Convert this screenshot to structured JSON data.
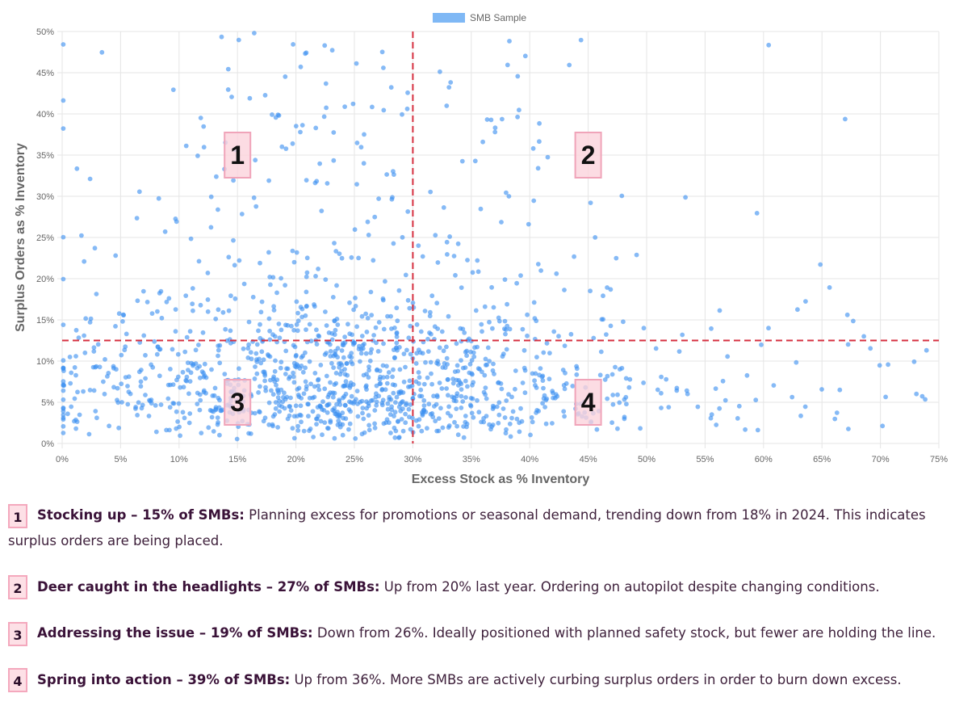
{
  "legend_label": "SMB Sample",
  "colors": {
    "point": "#3b8ff0",
    "legend": "#7fb8f5",
    "threshold": "#d63040",
    "box_fill": "#fbd3dc",
    "box_stroke": "#f0a4b9"
  },
  "chart_data": {
    "type": "scatter",
    "xlabel": "Excess Stock as % Inventory",
    "ylabel": "Surplus Orders as % Inventory",
    "xlim": [
      0,
      75
    ],
    "ylim": [
      0,
      50
    ],
    "x_ticks": [
      "0%",
      "5%",
      "10%",
      "15%",
      "20%",
      "25%",
      "30%",
      "35%",
      "40%",
      "45%",
      "50%",
      "55%",
      "60%",
      "65%",
      "70%",
      "75%"
    ],
    "y_ticks": [
      "0%",
      "5%",
      "10%",
      "15%",
      "20%",
      "25%",
      "30%",
      "35%",
      "40%",
      "45%",
      "50%"
    ],
    "grid": true,
    "legend": "top-center",
    "series": [
      {
        "name": "SMB Sample",
        "sample_size": 1400
      }
    ],
    "thresholds": {
      "x": 30,
      "y": 12.5
    },
    "quadrant_labels": [
      {
        "label": "1",
        "x": 15,
        "y": 35
      },
      {
        "label": "2",
        "x": 45,
        "y": 35
      },
      {
        "label": "3",
        "x": 15,
        "y": 5
      },
      {
        "label": "4",
        "x": 45,
        "y": 5
      }
    ]
  },
  "notes": [
    {
      "num": "1",
      "title": "Stocking up – 15% of SMBs:",
      "body": " Planning excess for promotions or seasonal demand, trending down from 18% in 2024. This indicates surplus orders are being placed."
    },
    {
      "num": "2",
      "title": "Deer caught in the headlights – 27% of SMBs:",
      "body": " Up from 20% last year. Ordering on autopilot despite changing conditions."
    },
    {
      "num": "3",
      "title": "Addressing the issue – 19% of SMBs:",
      "body": " Down from 26%. Ideally positioned with planned safety stock, but fewer are holding the line."
    },
    {
      "num": "4",
      "title": "Spring into action – 39% of SMBs:",
      "body": " Up from 36%. More SMBs are actively curbing surplus orders in order to burn down excess."
    }
  ]
}
